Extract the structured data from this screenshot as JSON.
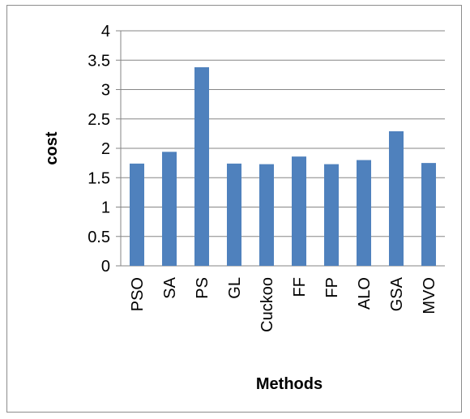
{
  "chart_data": {
    "type": "bar",
    "title": "",
    "xlabel": "Methods",
    "ylabel": "cost",
    "categories": [
      "PSO",
      "SA",
      "PS",
      "GL",
      "Cuckoo",
      "FF",
      "FP",
      "ALO",
      "GSA",
      "MVO"
    ],
    "values": [
      1.74,
      1.94,
      3.38,
      1.74,
      1.73,
      1.86,
      1.73,
      1.8,
      2.29,
      1.75
    ],
    "ylim": [
      0,
      4
    ],
    "yticks": [
      "0",
      "0.5",
      "1",
      "1.5",
      "2",
      "2.5",
      "3",
      "3.5",
      "4"
    ],
    "ytick_values": [
      0,
      0.5,
      1,
      1.5,
      2,
      2.5,
      3,
      3.5,
      4
    ],
    "grid": "horizontal",
    "legend": "none",
    "bar_color": "#4f81bd",
    "grid_color": "#868686"
  }
}
